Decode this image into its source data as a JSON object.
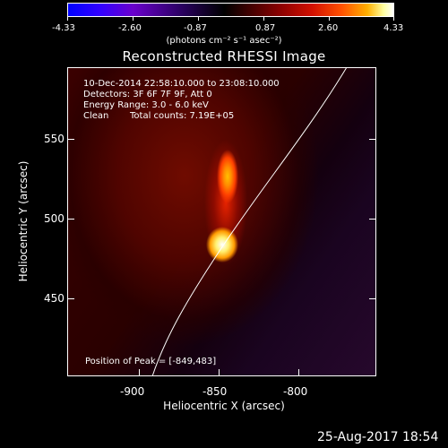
{
  "colorbar": {
    "ticks": [
      "-4.33",
      "-2.60",
      "-0.87",
      "0.87",
      "2.60",
      "4.33"
    ],
    "label": "(photons cm⁻² s⁻¹ asec⁻²)"
  },
  "title": "Reconstructed RHESSI Image",
  "info": {
    "time_range": "10-Dec-2014 22:58:10.000 to 23:08:10.000",
    "detectors": "Detectors: 3F 6F 7F 9F, Att 0",
    "energy_range": "Energy Range: 3.0 - 6.0 keV",
    "clean": "Clean",
    "total_counts": "Total counts: 7.19E+05",
    "peak_position": "Position of Peak = [-849,483]"
  },
  "axes": {
    "x_ticks": [
      "-900",
      "-850",
      "-800"
    ],
    "y_ticks": [
      "550",
      "500",
      "450"
    ],
    "xlabel": "Heliocentric X (arcsec)",
    "ylabel": "Heliocentric Y (arcsec)"
  },
  "footer": {
    "timestamp": "25-Aug-2017 18:54"
  },
  "colors": {
    "limb_line": "#ffffff",
    "frame": "#ffffff",
    "background": "#000000"
  }
}
